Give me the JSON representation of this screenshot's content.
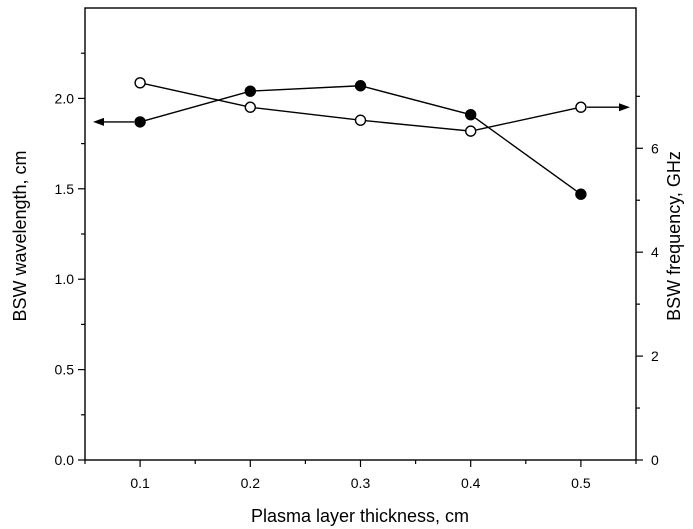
{
  "chart_data": {
    "type": "line",
    "title": "",
    "xlabel": "Plasma layer thickness, cm",
    "ylabel_left": "BSW wavelength, cm",
    "ylabel_right": "BSW frequency, GHz",
    "xlim": [
      0.05,
      0.55
    ],
    "ylim_left": [
      0.0,
      2.5
    ],
    "ylim_right": [
      0,
      8.7
    ],
    "x_ticks": [
      "0.1",
      "0.2",
      "0.3",
      "0.4",
      "0.5"
    ],
    "x_tick_values": [
      0.1,
      0.2,
      0.3,
      0.4,
      0.5
    ],
    "y_left_ticks": [
      "0.0",
      "0.5",
      "1.0",
      "1.5",
      "2.0"
    ],
    "y_left_tick_values": [
      0.0,
      0.5,
      1.0,
      1.5,
      2.0
    ],
    "y_right_ticks": [
      "0",
      "2",
      "4",
      "6"
    ],
    "y_right_tick_values": [
      0,
      2,
      4,
      6
    ],
    "grid": false,
    "series": [
      {
        "marker": "filled-circle",
        "axis": "left",
        "x": [
          0.1,
          0.2,
          0.3,
          0.4,
          0.5
        ],
        "values": [
          1.87,
          2.04,
          2.07,
          1.91,
          1.47
        ],
        "arrow": "left"
      },
      {
        "marker": "open-circle",
        "axis": "right",
        "x": [
          0.1,
          0.2,
          0.3,
          0.4,
          0.5
        ],
        "values": [
          7.26,
          6.79,
          6.54,
          6.33,
          6.79
        ],
        "arrow": "right"
      }
    ],
    "colors": {
      "line": "#000000",
      "background": "#ffffff"
    }
  }
}
